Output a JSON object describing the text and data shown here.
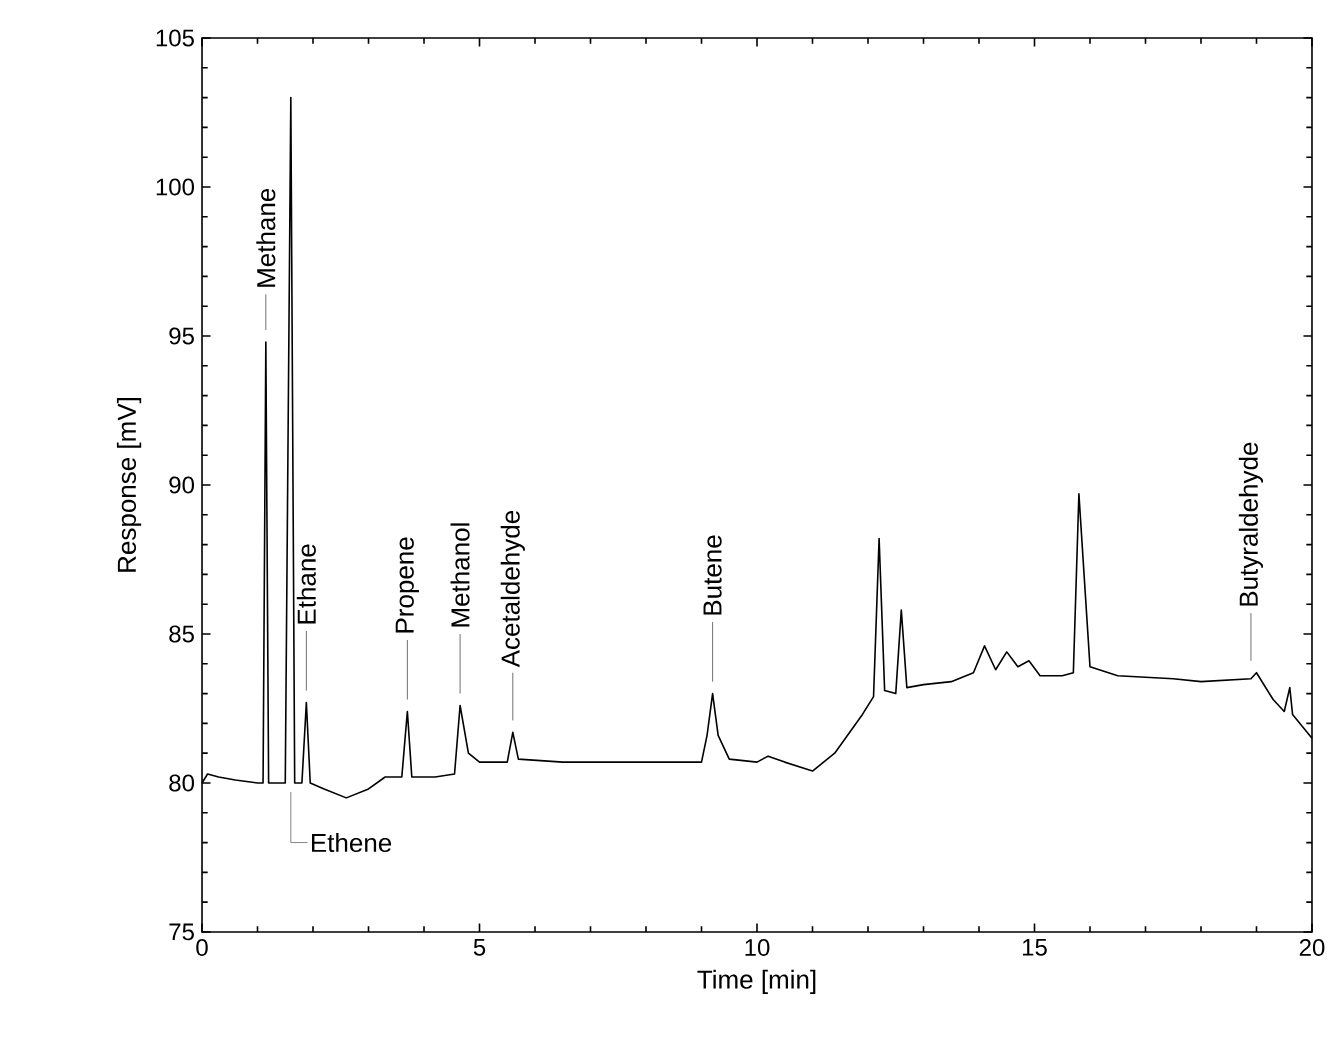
{
  "chart_data": {
    "type": "line",
    "xlabel": "Time [min]",
    "ylabel": "Response [mV]",
    "xlim": [
      0,
      20
    ],
    "ylim": [
      75,
      105
    ],
    "xticks": [
      0,
      5,
      10,
      15,
      20
    ],
    "yticks": [
      75,
      80,
      85,
      90,
      95,
      100,
      105
    ],
    "grid": false,
    "marker": "none",
    "line_style": "solid",
    "series": [
      {
        "color": "#000000",
        "x": [
          0,
          0.1,
          0.3,
          0.6,
          1.0,
          1.1,
          1.15,
          1.2,
          1.5,
          1.6,
          1.67,
          1.8,
          1.88,
          1.95,
          2.2,
          2.6,
          3.0,
          3.3,
          3.6,
          3.7,
          3.78,
          4.2,
          4.55,
          4.65,
          4.8,
          5.0,
          5.5,
          5.6,
          5.7,
          6.5,
          8.0,
          9.0,
          9.1,
          9.2,
          9.3,
          9.5,
          10.0,
          10.2,
          10.5,
          11.0,
          11.4,
          11.9,
          12.1,
          12.2,
          12.3,
          12.5,
          12.6,
          12.7,
          13.0,
          13.5,
          13.9,
          14.1,
          14.3,
          14.5,
          14.7,
          14.9,
          15.1,
          15.5,
          15.7,
          15.8,
          16.0,
          16.5,
          17.5,
          18.0,
          18.9,
          19.0,
          19.3,
          19.5,
          19.6,
          19.65,
          20
        ],
        "values": [
          80.0,
          80.3,
          80.2,
          80.1,
          80.0,
          80.0,
          94.8,
          80.0,
          80.0,
          103.0,
          80.0,
          80.0,
          82.7,
          80.0,
          79.8,
          79.5,
          79.8,
          80.2,
          80.2,
          82.4,
          80.2,
          80.2,
          80.3,
          82.6,
          81.0,
          80.7,
          80.7,
          81.7,
          80.8,
          80.7,
          80.7,
          80.7,
          81.6,
          83.0,
          81.6,
          80.8,
          80.7,
          80.9,
          80.7,
          80.4,
          81.0,
          82.3,
          82.9,
          88.2,
          83.1,
          83.0,
          85.8,
          83.2,
          83.3,
          83.4,
          83.7,
          84.6,
          83.8,
          84.4,
          83.9,
          84.1,
          83.6,
          83.6,
          83.7,
          89.7,
          83.9,
          83.6,
          83.5,
          83.4,
          83.5,
          83.7,
          82.8,
          82.4,
          83.2,
          82.3,
          81.5
        ]
      }
    ],
    "annotations": [
      {
        "text": "Methane",
        "x": 1.15,
        "y": 94.8
      },
      {
        "text": "Ethene",
        "x": 1.6,
        "y": 80.0
      },
      {
        "text": "Ethane",
        "x": 1.88,
        "y": 82.7
      },
      {
        "text": "Propene",
        "x": 3.7,
        "y": 82.4
      },
      {
        "text": "Methanol",
        "x": 4.65,
        "y": 82.6
      },
      {
        "text": "Acetaldehyde",
        "x": 5.6,
        "y": 81.7
      },
      {
        "text": "Butene",
        "x": 9.2,
        "y": 83.0
      },
      {
        "text": "Butyraldehyde",
        "x": 18.9,
        "y": 83.7
      }
    ]
  }
}
